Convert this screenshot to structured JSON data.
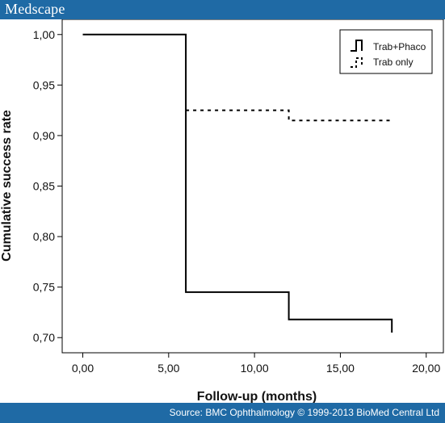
{
  "header": {
    "brand": "Medscape"
  },
  "footer": {
    "source": "Source: BMC Ophthalmology © 1999-2013 BioMed Central Ltd"
  },
  "colors": {
    "bar": "#1f6aa5",
    "line": "#000000"
  },
  "chart_data": {
    "type": "line",
    "step": true,
    "xlabel": "Follow-up  (months)",
    "ylabel": "Cumulative success rate",
    "xlim": [
      -1.2,
      21
    ],
    "ylim": [
      0.685,
      1.015
    ],
    "xticks": [
      0,
      5,
      10,
      15,
      20
    ],
    "xtick_labels": [
      "0,00",
      "5,00",
      "10,00",
      "15,00",
      "20,00"
    ],
    "yticks": [
      0.7,
      0.75,
      0.8,
      0.85,
      0.9,
      0.95,
      1.0
    ],
    "ytick_labels": [
      "0,70",
      "0,75",
      "0,80",
      "0,85",
      "0,90",
      "0,95",
      "1,00"
    ],
    "legend_position": "top-right",
    "series": [
      {
        "name": "Trab+Phaco",
        "style": "solid",
        "x": [
          0,
          6,
          6,
          12,
          12,
          18,
          18
        ],
        "y": [
          1.0,
          1.0,
          0.745,
          0.745,
          0.718,
          0.718,
          0.705
        ]
      },
      {
        "name": "Trab only",
        "style": "dotted",
        "x": [
          6,
          12,
          12,
          18
        ],
        "y": [
          0.925,
          0.925,
          0.915,
          0.915
        ]
      }
    ]
  }
}
